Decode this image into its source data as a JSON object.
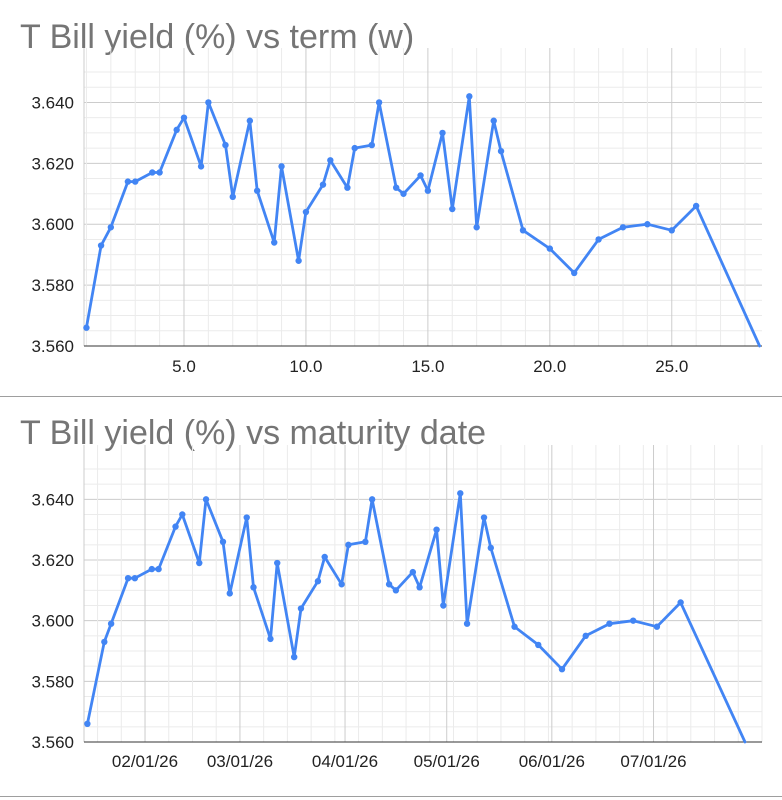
{
  "charts": [
    {
      "title": "T Bill yield (%) vs term (w)"
    },
    {
      "title": "T Bill yield (%) vs maturity date"
    }
  ],
  "chart_data": [
    {
      "type": "line",
      "title": "T Bill yield (%) vs term (w)",
      "xlabel": "",
      "ylabel": "",
      "xlim": [
        0.9,
        28.7
      ],
      "ylim": [
        3.56,
        3.65
      ],
      "x_ticks": [
        "5.0",
        "10.0",
        "15.0",
        "20.0",
        "25.0"
      ],
      "y_ticks": [
        "3.560",
        "3.580",
        "3.600",
        "3.620",
        "3.640"
      ],
      "grid": true,
      "color": "#4285f4",
      "x": [
        1.0,
        1.6,
        2.0,
        2.7,
        3.0,
        3.7,
        4.0,
        4.7,
        5.0,
        5.7,
        6.0,
        6.7,
        7.0,
        7.7,
        8.0,
        8.7,
        9.0,
        9.7,
        10.0,
        10.7,
        11.0,
        11.7,
        12.0,
        12.7,
        13.0,
        13.7,
        14.0,
        14.7,
        15.0,
        15.6,
        16.0,
        16.7,
        17.0,
        17.7,
        18.0,
        18.9,
        20.0,
        21.0,
        22.0,
        23.0,
        24.0,
        25.0,
        26.0,
        28.6
      ],
      "values": [
        3.566,
        3.593,
        3.599,
        3.614,
        3.614,
        3.617,
        3.617,
        3.631,
        3.635,
        3.619,
        3.64,
        3.626,
        3.609,
        3.634,
        3.611,
        3.594,
        3.619,
        3.588,
        3.604,
        3.613,
        3.621,
        3.612,
        3.625,
        3.626,
        3.64,
        3.612,
        3.61,
        3.616,
        3.611,
        3.63,
        3.605,
        3.642,
        3.599,
        3.634,
        3.624,
        3.598,
        3.592,
        3.584,
        3.595,
        3.599,
        3.6,
        3.598,
        3.606,
        3.56
      ]
    },
    {
      "type": "line",
      "title": "T Bill yield (%) vs maturity date",
      "xlabel": "",
      "ylabel": "",
      "xlim": [
        "2026-01-14",
        "2026-08-02"
      ],
      "ylim": [
        3.56,
        3.65
      ],
      "x_ticks": [
        "02/01/26",
        "03/01/26",
        "04/01/26",
        "05/01/26",
        "06/01/26",
        "07/01/26"
      ],
      "y_ticks": [
        "3.560",
        "3.580",
        "3.600",
        "3.620",
        "3.640"
      ],
      "grid": true,
      "color": "#4285f4",
      "x": [
        "2026-01-15",
        "2026-01-20",
        "2026-01-22",
        "2026-01-27",
        "2026-01-29",
        "2026-02-03",
        "2026-02-05",
        "2026-02-10",
        "2026-02-12",
        "2026-02-17",
        "2026-02-19",
        "2026-02-24",
        "2026-02-26",
        "2026-03-03",
        "2026-03-05",
        "2026-03-10",
        "2026-03-12",
        "2026-03-17",
        "2026-03-19",
        "2026-03-24",
        "2026-03-26",
        "2026-03-31",
        "2026-04-02",
        "2026-04-07",
        "2026-04-09",
        "2026-04-14",
        "2026-04-16",
        "2026-04-21",
        "2026-04-23",
        "2026-04-28",
        "2026-04-30",
        "2026-05-05",
        "2026-05-07",
        "2026-05-12",
        "2026-05-14",
        "2026-05-21",
        "2026-05-28",
        "2026-06-04",
        "2026-06-11",
        "2026-06-18",
        "2026-06-25",
        "2026-07-02",
        "2026-07-09",
        "2026-07-28"
      ],
      "values": [
        3.566,
        3.593,
        3.599,
        3.614,
        3.614,
        3.617,
        3.617,
        3.631,
        3.635,
        3.619,
        3.64,
        3.626,
        3.609,
        3.634,
        3.611,
        3.594,
        3.619,
        3.588,
        3.604,
        3.613,
        3.621,
        3.612,
        3.625,
        3.626,
        3.64,
        3.612,
        3.61,
        3.616,
        3.611,
        3.63,
        3.605,
        3.642,
        3.599,
        3.634,
        3.624,
        3.598,
        3.592,
        3.584,
        3.595,
        3.599,
        3.6,
        3.598,
        3.606,
        3.56
      ]
    }
  ]
}
